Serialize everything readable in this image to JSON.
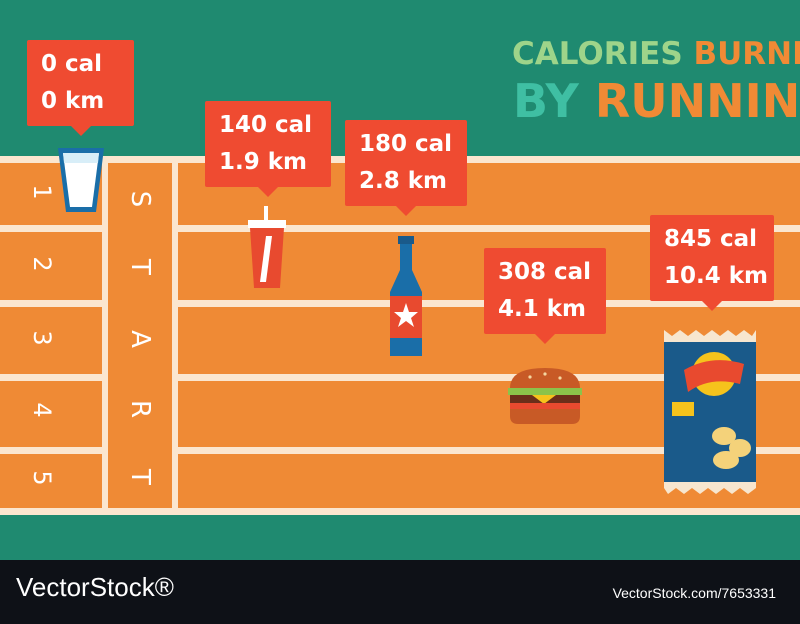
{
  "title": {
    "line1_word1": "CALORIES",
    "line1_word2": "BURNED",
    "line2_word1": "BY",
    "line2_word2": "RUNNING"
  },
  "track": {
    "start_label": [
      "S",
      "T",
      "A",
      "R",
      "T"
    ],
    "lanes": [
      "1",
      "2",
      "3",
      "4",
      "5"
    ]
  },
  "items": [
    {
      "icon": "water-glass-icon",
      "cal": "0 cal",
      "km": "0 km"
    },
    {
      "icon": "soda-cup-icon",
      "cal": "140 cal",
      "km": "1.9 km"
    },
    {
      "icon": "beer-bottle-icon",
      "cal": "180 cal",
      "km": "2.8 km"
    },
    {
      "icon": "burger-icon",
      "cal": "308 cal",
      "km": "4.1 km"
    },
    {
      "icon": "chips-bag-icon",
      "cal": "845 cal",
      "km": "10.4 km"
    }
  ],
  "footer": {
    "brand": "VectorStock®",
    "id": "VectorStock.com/7653331"
  },
  "colors": {
    "background": "#1f8a70",
    "track": "#ef8a35",
    "lane_line": "#fbe6cf",
    "callout": "#ef4b31",
    "footer": "#0e1117"
  }
}
